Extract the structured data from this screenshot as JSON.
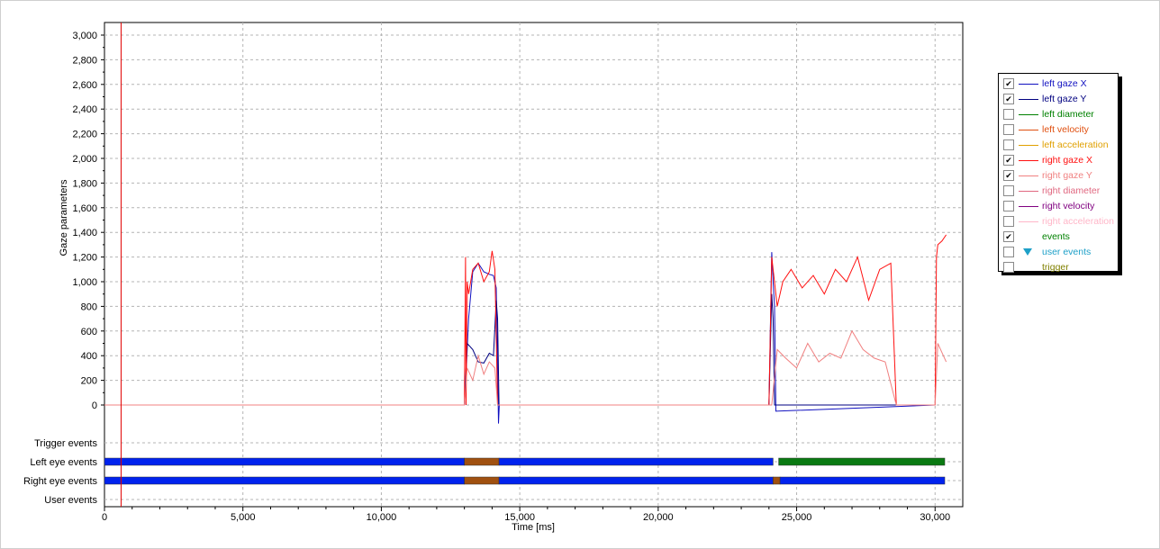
{
  "chart_data": {
    "type": "line",
    "title": "",
    "xlabel": "Time [ms]",
    "ylabel": "Gaze parameters",
    "xlim": [
      0,
      31000
    ],
    "ylim": [
      -300,
      3100
    ],
    "x_ticks": [
      0,
      5000,
      10000,
      15000,
      20000,
      25000,
      30000
    ],
    "x_tick_labels": [
      "0",
      "5,000",
      "10,000",
      "15,000",
      "20,000",
      "25,000",
      "30,000"
    ],
    "y_ticks": [
      0,
      200,
      400,
      600,
      800,
      1000,
      1200,
      1400,
      1600,
      1800,
      2000,
      2200,
      2400,
      2600,
      2800,
      3000
    ],
    "y_tick_labels": [
      "0",
      "200",
      "400",
      "600",
      "800",
      "1,000",
      "1,200",
      "1,400",
      "1,600",
      "1,800",
      "2,000",
      "2,200",
      "2,400",
      "2,600",
      "2,800",
      "3,000"
    ],
    "grid": true,
    "legend_position": "right",
    "marker_x": 600,
    "marker_color": "#e00000",
    "series": [
      {
        "name": "left gaze X",
        "color": "#1010c0",
        "x": [
          0,
          13000,
          13050,
          13150,
          13300,
          13500,
          13700,
          13900,
          14050,
          14150,
          14200,
          14230,
          14260,
          24000,
          24100,
          24150,
          24200,
          24250,
          30000
        ],
        "y": [
          0,
          0,
          200,
          700,
          1080,
          1150,
          1080,
          1060,
          1050,
          950,
          300,
          -150,
          0,
          0,
          1240,
          1000,
          800,
          -50,
          0
        ]
      },
      {
        "name": "left gaze Y",
        "color": "#000080",
        "x": [
          0,
          13000,
          13100,
          13300,
          13500,
          13700,
          13900,
          14050,
          14150,
          14200,
          14250,
          24000,
          24100,
          24150,
          24200,
          30000
        ],
        "y": [
          0,
          0,
          500,
          450,
          350,
          340,
          420,
          400,
          850,
          700,
          0,
          0,
          900,
          700,
          0,
          0
        ]
      },
      {
        "name": "right gaze X",
        "color": "#ff1010",
        "x": [
          0,
          13000,
          13040,
          13060,
          13100,
          13150,
          13300,
          13500,
          13700,
          13900,
          14000,
          14100,
          14200,
          14230,
          24000,
          24100,
          24300,
          24500,
          24800,
          25200,
          25600,
          26000,
          26400,
          26800,
          27200,
          27600,
          28000,
          28400,
          28600,
          30000,
          30050,
          30100,
          30250,
          30400
        ],
        "y": [
          0,
          0,
          1200,
          0,
          1000,
          900,
          1100,
          1150,
          1000,
          1080,
          1250,
          1100,
          0,
          0,
          0,
          1200,
          800,
          1000,
          1100,
          950,
          1050,
          900,
          1100,
          1000,
          1200,
          850,
          1100,
          1150,
          0,
          0,
          1200,
          1300,
          1330,
          1380
        ]
      },
      {
        "name": "right gaze Y",
        "color": "#f08080",
        "x": [
          0,
          13000,
          13100,
          13300,
          13500,
          13700,
          13900,
          14100,
          14200,
          24100,
          24300,
          24600,
          25000,
          25400,
          25800,
          26200,
          26600,
          27000,
          27400,
          27800,
          28200,
          28600,
          30000,
          30100,
          30200,
          30400
        ],
        "y": [
          0,
          0,
          300,
          200,
          400,
          250,
          350,
          300,
          0,
          0,
          450,
          380,
          300,
          500,
          350,
          420,
          380,
          600,
          450,
          380,
          350,
          0,
          0,
          500,
          450,
          350
        ]
      }
    ],
    "event_tracks": {
      "labels": [
        "Trigger events",
        "Left eye events",
        "Right eye events",
        "User events"
      ],
      "left_eye_segments": [
        {
          "start": 0,
          "end": 13000,
          "color": "#0022ee"
        },
        {
          "start": 13000,
          "end": 14250,
          "color": "#a05010"
        },
        {
          "start": 14250,
          "end": 24150,
          "color": "#0022ee"
        },
        {
          "start": 24350,
          "end": 30350,
          "color": "#0a7a12"
        }
      ],
      "right_eye_segments": [
        {
          "start": 0,
          "end": 13000,
          "color": "#0022ee"
        },
        {
          "start": 13000,
          "end": 14250,
          "color": "#a05010"
        },
        {
          "start": 14250,
          "end": 24150,
          "color": "#0022ee"
        },
        {
          "start": 24150,
          "end": 24400,
          "color": "#a05010"
        },
        {
          "start": 24400,
          "end": 30350,
          "color": "#0022ee"
        }
      ]
    }
  },
  "legend": [
    {
      "label": "left gaze X",
      "color": "#1010c0",
      "checked": true,
      "icon": "line"
    },
    {
      "label": "left gaze Y",
      "color": "#000080",
      "checked": true,
      "icon": "line"
    },
    {
      "label": "left diameter",
      "color": "#008000",
      "checked": false,
      "icon": "line"
    },
    {
      "label": "left velocity",
      "color": "#e05010",
      "checked": false,
      "icon": "line"
    },
    {
      "label": "left acceleration",
      "color": "#e0a000",
      "checked": false,
      "icon": "line"
    },
    {
      "label": "right gaze X",
      "color": "#ff1010",
      "checked": true,
      "icon": "line"
    },
    {
      "label": "right gaze Y",
      "color": "#f08080",
      "checked": true,
      "icon": "line"
    },
    {
      "label": "right diameter",
      "color": "#e06880",
      "checked": false,
      "icon": "line"
    },
    {
      "label": "right velocity",
      "color": "#800080",
      "checked": false,
      "icon": "line"
    },
    {
      "label": "right acceleration",
      "color": "#ffb6c8",
      "checked": false,
      "icon": "line"
    },
    {
      "label": "events",
      "color": "#008000",
      "checked": true,
      "icon": "none"
    },
    {
      "label": "user events",
      "color": "#1ea0c8",
      "checked": false,
      "icon": "triangle-down-icon"
    },
    {
      "label": "trigger",
      "color": "#808000",
      "checked": false,
      "icon": "none"
    }
  ]
}
